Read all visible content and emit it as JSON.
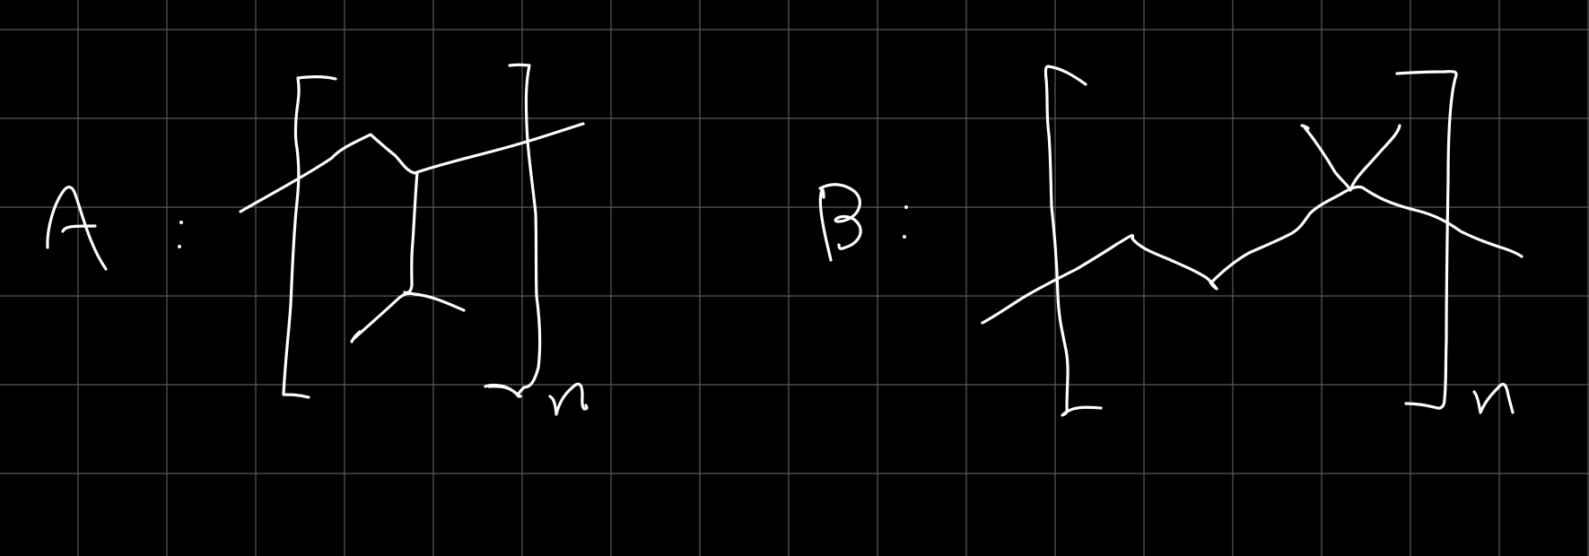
{
  "canvas": {
    "background_color": "#000000",
    "grid_color": "#5a5a5a",
    "ink_color": "#ffffff",
    "grid": true
  },
  "polymer_a": {
    "label": "A",
    "separator": ":",
    "repeat_subscript": "n"
  },
  "polymer_b": {
    "label": "B",
    "separator": ":",
    "repeat_subscript": "n"
  }
}
